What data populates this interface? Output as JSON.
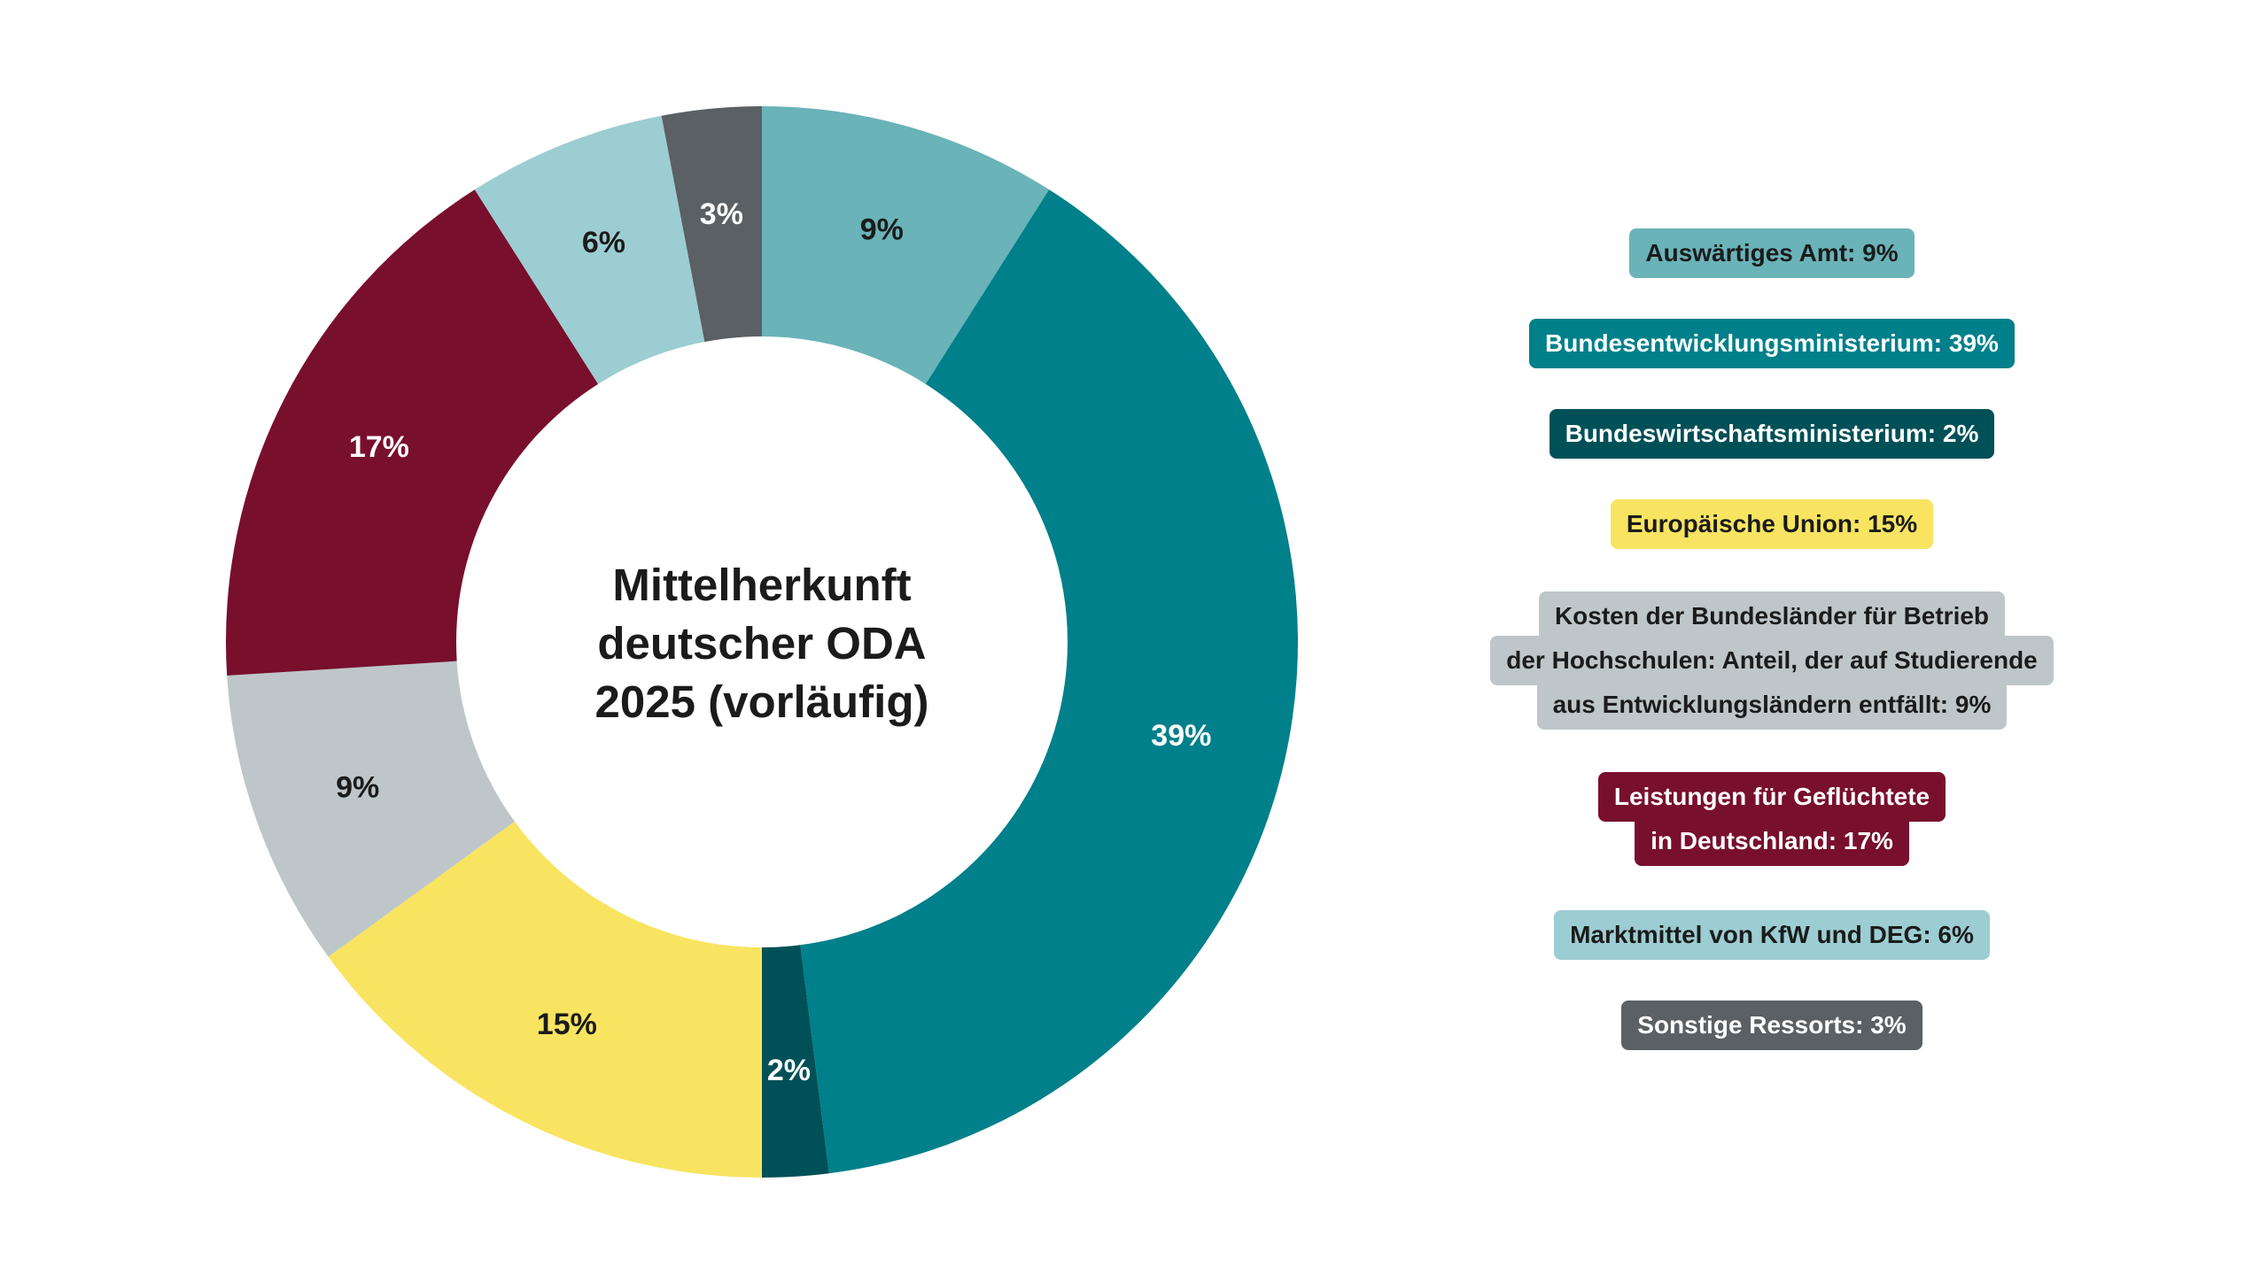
{
  "chart_data": {
    "type": "pie",
    "title": "Mittelherkunft deutscher ODA 2025 (vorläufig)",
    "title_lines": [
      "Mittelherkunft",
      "deutscher ODA",
      "2025 (vorläufig)"
    ],
    "donut": true,
    "slices": [
      {
        "label": "Auswärtiges Amt",
        "value": 9,
        "display": "9%",
        "color": "#69b3b9",
        "text_color": "#1b1b1b",
        "legend_lines": [
          "Auswärtiges Amt: 9%"
        ]
      },
      {
        "label": "Bundesentwicklungsministerium",
        "value": 39,
        "display": "39%",
        "color": "#00808a",
        "text_color": "#ffffff",
        "legend_lines": [
          "Bundesentwicklungsministerium: 39%"
        ]
      },
      {
        "label": "Bundeswirtschaftsministerium",
        "value": 2,
        "display": "2%",
        "color": "#005057",
        "text_color": "#ffffff",
        "legend_lines": [
          "Bundeswirtschaftsministerium: 2%"
        ]
      },
      {
        "label": "Europäische Union",
        "value": 15,
        "display": "15%",
        "color": "#f8e461",
        "text_color": "#1b1b1b",
        "legend_lines": [
          "Europäische Union: 15%"
        ]
      },
      {
        "label": "Kosten der Bundesländer für Betrieb der Hochschulen: Anteil, der auf Studierende aus Entwicklungsländern entfällt",
        "value": 9,
        "display": "9%",
        "color": "#bec6c9",
        "text_color": "#1b1b1b",
        "legend_lines": [
          "Kosten der Bundesländer für Betrieb",
          "der Hochschulen: Anteil, der auf Studierende",
          "aus Entwicklungsländern entfällt: 9%"
        ]
      },
      {
        "label": "Leistungen für Geflüchtete in Deutschland",
        "value": 17,
        "display": "17%",
        "color": "#780f2d",
        "text_color": "#ffffff",
        "legend_lines": [
          "Leistungen für Geflüchtete",
          "in Deutschland: 17%"
        ]
      },
      {
        "label": "Marktmittel von KfW und DEG",
        "value": 6,
        "display": "6%",
        "color": "#9ccdd2",
        "text_color": "#1b1b1b",
        "legend_lines": [
          "Marktmittel von KfW und DEG: 6%"
        ]
      },
      {
        "label": "Sonstige Ressorts",
        "value": 3,
        "display": "3%",
        "color": "#5a6063",
        "text_color": "#ffffff",
        "legend_lines": [
          "Sonstige Ressorts: 3%"
        ]
      }
    ]
  }
}
